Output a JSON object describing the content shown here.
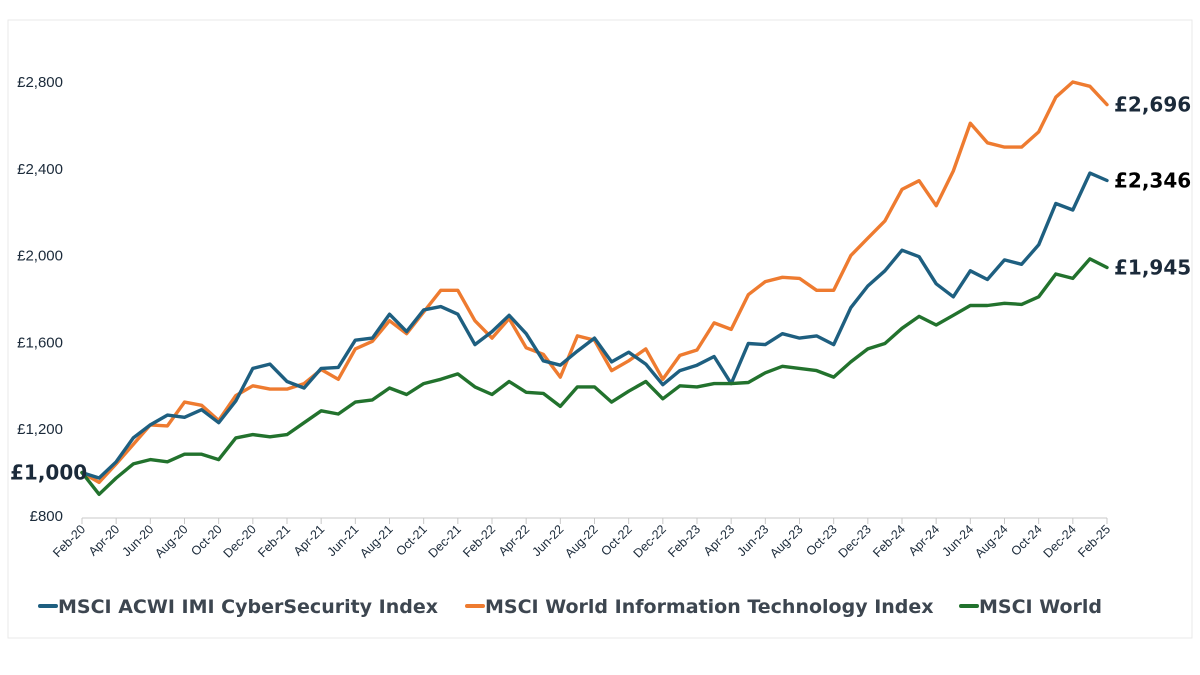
{
  "chart_data": {
    "type": "line",
    "title": "",
    "xlabel": "",
    "ylabel": "",
    "ylim": [
      800,
      2900
    ],
    "yticks": [
      800,
      1200,
      1600,
      2000,
      2400,
      2800
    ],
    "ytick_labels": [
      "£800",
      "£1,200",
      "£1,600",
      "£2,000",
      "£2,400",
      "£2,800"
    ],
    "tick_labels": [
      "Feb-20",
      "Apr-20",
      "Jun-20",
      "Aug-20",
      "Oct-20",
      "Dec-20",
      "Feb-21",
      "Apr-21",
      "Jun-21",
      "Aug-21",
      "Oct-21",
      "Dec-21",
      "Feb-22",
      "Apr-22",
      "Jun-22",
      "Aug-22",
      "Oct-22",
      "Dec-22",
      "Feb-23",
      "Apr-23",
      "Jun-23",
      "Aug-23",
      "Oct-23",
      "Dec-23",
      "Feb-24",
      "Apr-24",
      "Jun-24",
      "Aug-24",
      "Oct-24",
      "Dec-24",
      "Feb-25"
    ],
    "start_label": "£1,000",
    "legend_position": "bottom",
    "series": [
      {
        "name": "MSCI ACWI IMI CyberSecurity Index",
        "color": "#1e5f80",
        "end_label": "£2,346",
        "end_label_color": "#000000",
        "values": [
          1000,
          975,
          1050,
          1160,
          1220,
          1265,
          1255,
          1290,
          1230,
          1330,
          1480,
          1500,
          1420,
          1390,
          1480,
          1485,
          1610,
          1620,
          1730,
          1650,
          1750,
          1765,
          1730,
          1590,
          1650,
          1725,
          1640,
          1515,
          1495,
          1560,
          1620,
          1510,
          1555,
          1500,
          1405,
          1470,
          1495,
          1535,
          1410,
          1595,
          1590,
          1640,
          1620,
          1630,
          1590,
          1760,
          1860,
          1930,
          2025,
          1995,
          1870,
          1810,
          1930,
          1890,
          1980,
          1960,
          2050,
          2240,
          2210,
          2380,
          2346
        ]
      },
      {
        "name": "MSCI World Information Technology Index",
        "color": "#ee7b30",
        "end_label": "£2,696",
        "end_label_color": "#1b2a3a",
        "values": [
          1000,
          955,
          1040,
          1130,
          1220,
          1215,
          1325,
          1310,
          1240,
          1355,
          1400,
          1385,
          1385,
          1410,
          1475,
          1430,
          1570,
          1605,
          1700,
          1640,
          1740,
          1840,
          1840,
          1700,
          1620,
          1710,
          1575,
          1545,
          1440,
          1630,
          1610,
          1470,
          1515,
          1570,
          1430,
          1540,
          1565,
          1690,
          1660,
          1820,
          1880,
          1900,
          1895,
          1840,
          1840,
          2000,
          2080,
          2160,
          2305,
          2345,
          2230,
          2390,
          2610,
          2520,
          2500,
          2500,
          2570,
          2730,
          2800,
          2780,
          2696
        ]
      },
      {
        "name": "MSCI World",
        "color": "#22722d",
        "end_label": "£1,945",
        "end_label_color": "#1b2a3a",
        "values": [
          1000,
          900,
          975,
          1040,
          1060,
          1050,
          1085,
          1085,
          1060,
          1160,
          1175,
          1165,
          1175,
          1230,
          1285,
          1270,
          1325,
          1335,
          1390,
          1360,
          1410,
          1430,
          1455,
          1395,
          1360,
          1420,
          1370,
          1365,
          1305,
          1395,
          1395,
          1325,
          1375,
          1420,
          1340,
          1400,
          1395,
          1410,
          1410,
          1415,
          1460,
          1490,
          1480,
          1470,
          1440,
          1510,
          1570,
          1595,
          1665,
          1720,
          1680,
          1725,
          1770,
          1770,
          1780,
          1775,
          1810,
          1915,
          1895,
          1985,
          1945
        ]
      }
    ]
  }
}
